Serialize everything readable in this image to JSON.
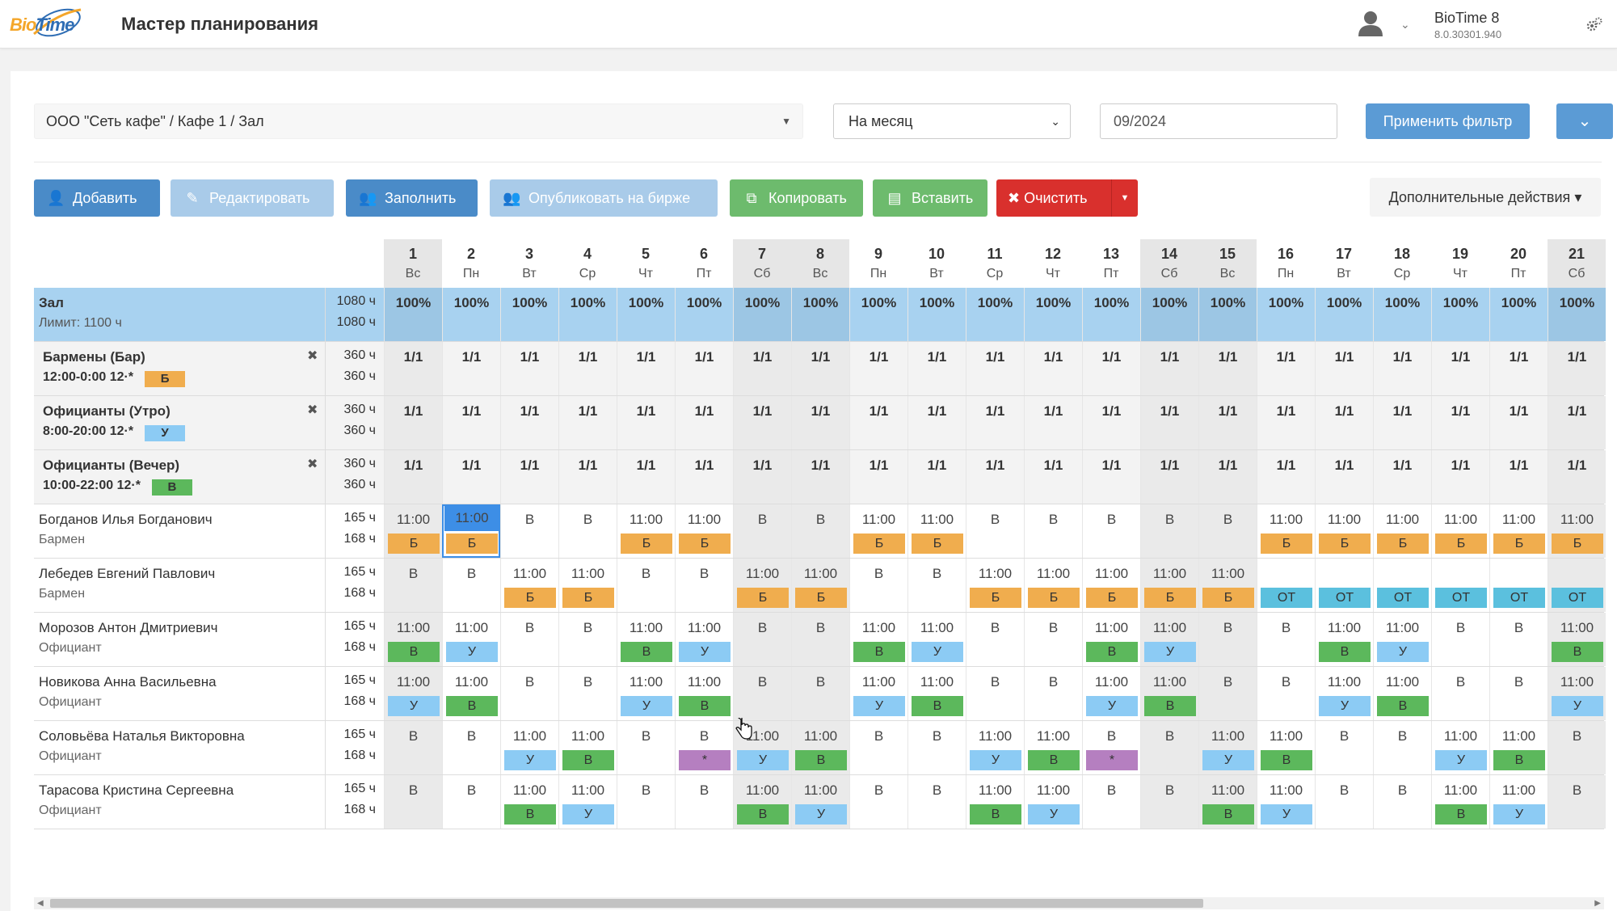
{
  "app": {
    "logo_text_bio": "Bio",
    "logo_text_time": "Time",
    "title": "Мастер планирования",
    "product_name": "BioTime 8",
    "product_version": "8.0.30301.940"
  },
  "filter": {
    "org_path": "ООО \"Сеть кафе\" / Кафе 1 / Зал",
    "period": "На месяц",
    "date": "09/2024",
    "apply_label": "Применить фильтр"
  },
  "toolbar": {
    "add": "Добавить",
    "edit": "Редактировать",
    "fill": "Заполнить",
    "publish": "Опубликовать на бирже",
    "copy": "Копировать",
    "paste": "Вставить",
    "clear": "Очистить",
    "more": "Дополнительные действия"
  },
  "colors": {
    "Б": "#f0ad4e",
    "У": "#8ccbf4",
    "В": "#5cb85c",
    "ОТ": "#5bc0de",
    "*": "#b57fc0"
  },
  "days": [
    {
      "n": "1",
      "w": "Вс",
      "we": true
    },
    {
      "n": "2",
      "w": "Пн",
      "we": false
    },
    {
      "n": "3",
      "w": "Вт",
      "we": false
    },
    {
      "n": "4",
      "w": "Ср",
      "we": false
    },
    {
      "n": "5",
      "w": "Чт",
      "we": false
    },
    {
      "n": "6",
      "w": "Пт",
      "we": false
    },
    {
      "n": "7",
      "w": "Сб",
      "we": true
    },
    {
      "n": "8",
      "w": "Вс",
      "we": true
    },
    {
      "n": "9",
      "w": "Пн",
      "we": false
    },
    {
      "n": "10",
      "w": "Вт",
      "we": false
    },
    {
      "n": "11",
      "w": "Ср",
      "we": false
    },
    {
      "n": "12",
      "w": "Чт",
      "we": false
    },
    {
      "n": "13",
      "w": "Пт",
      "we": false
    },
    {
      "n": "14",
      "w": "Сб",
      "we": true
    },
    {
      "n": "15",
      "w": "Вс",
      "we": true
    },
    {
      "n": "16",
      "w": "Пн",
      "we": false
    },
    {
      "n": "17",
      "w": "Вт",
      "we": false
    },
    {
      "n": "18",
      "w": "Ср",
      "we": false
    },
    {
      "n": "19",
      "w": "Чт",
      "we": false
    },
    {
      "n": "20",
      "w": "Пт",
      "we": false
    },
    {
      "n": "21",
      "w": "Сб",
      "we": true
    }
  ],
  "rows": [
    {
      "type": "summary",
      "name": "Зал",
      "sub": "Лимит: 1100 ч",
      "h1": "1080 ч",
      "h2": "1080 ч",
      "cells": [
        "100%",
        "100%",
        "100%",
        "100%",
        "100%",
        "100%",
        "100%",
        "100%",
        "100%",
        "100%",
        "100%",
        "100%",
        "100%",
        "100%",
        "100%",
        "100%",
        "100%",
        "100%",
        "100%",
        "100%",
        "100%"
      ]
    },
    {
      "type": "shift",
      "name": "Бармены (Бар)",
      "sub": "12:00-0:00   12·*",
      "badge": "Б",
      "h1": "360 ч",
      "h2": "360 ч",
      "cells": [
        "1/1",
        "1/1",
        "1/1",
        "1/1",
        "1/1",
        "1/1",
        "1/1",
        "1/1",
        "1/1",
        "1/1",
        "1/1",
        "1/1",
        "1/1",
        "1/1",
        "1/1",
        "1/1",
        "1/1",
        "1/1",
        "1/1",
        "1/1",
        "1/1"
      ]
    },
    {
      "type": "shift",
      "name": "Официанты (Утро)",
      "sub": "8:00-20:00   12·*",
      "badge": "У",
      "h1": "360 ч",
      "h2": "360 ч",
      "cells": [
        "1/1",
        "1/1",
        "1/1",
        "1/1",
        "1/1",
        "1/1",
        "1/1",
        "1/1",
        "1/1",
        "1/1",
        "1/1",
        "1/1",
        "1/1",
        "1/1",
        "1/1",
        "1/1",
        "1/1",
        "1/1",
        "1/1",
        "1/1",
        "1/1"
      ]
    },
    {
      "type": "shift",
      "name": "Официанты (Вечер)",
      "sub": "10:00-22:00   12·*",
      "badge": "В",
      "h1": "360 ч",
      "h2": "360 ч",
      "cells": [
        "1/1",
        "1/1",
        "1/1",
        "1/1",
        "1/1",
        "1/1",
        "1/1",
        "1/1",
        "1/1",
        "1/1",
        "1/1",
        "1/1",
        "1/1",
        "1/1",
        "1/1",
        "1/1",
        "1/1",
        "1/1",
        "1/1",
        "1/1",
        "1/1"
      ]
    },
    {
      "type": "emp",
      "name": "Богданов Илья Богданович",
      "sub": "Бармен",
      "h1": "165 ч",
      "h2": "168 ч",
      "cells": [
        {
          "v": "11:00",
          "t": "Б"
        },
        {
          "v": "11:00",
          "t": "Б",
          "sel": true
        },
        {
          "v": "В"
        },
        {
          "v": "В"
        },
        {
          "v": "11:00",
          "t": "Б"
        },
        {
          "v": "11:00",
          "t": "Б"
        },
        {
          "v": "В"
        },
        {
          "v": "В"
        },
        {
          "v": "11:00",
          "t": "Б"
        },
        {
          "v": "11:00",
          "t": "Б"
        },
        {
          "v": "В"
        },
        {
          "v": "В"
        },
        {
          "v": "В"
        },
        {
          "v": "В"
        },
        {
          "v": "В"
        },
        {
          "v": "11:00",
          "t": "Б"
        },
        {
          "v": "11:00",
          "t": "Б"
        },
        {
          "v": "11:00",
          "t": "Б"
        },
        {
          "v": "11:00",
          "t": "Б"
        },
        {
          "v": "11:00",
          "t": "Б"
        },
        {
          "v": "11:00",
          "t": "Б"
        }
      ]
    },
    {
      "type": "emp",
      "name": "Лебедев Евгений Павлович",
      "sub": "Бармен",
      "h1": "165 ч",
      "h2": "168 ч",
      "cells": [
        {
          "v": "В"
        },
        {
          "v": "В"
        },
        {
          "v": "11:00",
          "t": "Б"
        },
        {
          "v": "11:00",
          "t": "Б"
        },
        {
          "v": "В"
        },
        {
          "v": "В"
        },
        {
          "v": "11:00",
          "t": "Б"
        },
        {
          "v": "11:00",
          "t": "Б"
        },
        {
          "v": "В"
        },
        {
          "v": "В"
        },
        {
          "v": "11:00",
          "t": "Б"
        },
        {
          "v": "11:00",
          "t": "Б"
        },
        {
          "v": "11:00",
          "t": "Б"
        },
        {
          "v": "11:00",
          "t": "Б"
        },
        {
          "v": "11:00",
          "t": "Б"
        },
        {
          "v": "",
          "t": "ОТ"
        },
        {
          "v": "",
          "t": "ОТ"
        },
        {
          "v": "",
          "t": "ОТ"
        },
        {
          "v": "",
          "t": "ОТ"
        },
        {
          "v": "",
          "t": "ОТ"
        },
        {
          "v": "",
          "t": "ОТ"
        }
      ]
    },
    {
      "type": "emp",
      "name": "Морозов Антон Дмитриевич",
      "sub": "Официант",
      "h1": "165 ч",
      "h2": "168 ч",
      "cells": [
        {
          "v": "11:00",
          "t": "В"
        },
        {
          "v": "11:00",
          "t": "У"
        },
        {
          "v": "В"
        },
        {
          "v": "В"
        },
        {
          "v": "11:00",
          "t": "В"
        },
        {
          "v": "11:00",
          "t": "У"
        },
        {
          "v": "В"
        },
        {
          "v": "В"
        },
        {
          "v": "11:00",
          "t": "В"
        },
        {
          "v": "11:00",
          "t": "У"
        },
        {
          "v": "В"
        },
        {
          "v": "В"
        },
        {
          "v": "11:00",
          "t": "В"
        },
        {
          "v": "11:00",
          "t": "У"
        },
        {
          "v": "В"
        },
        {
          "v": "В"
        },
        {
          "v": "11:00",
          "t": "В"
        },
        {
          "v": "11:00",
          "t": "У"
        },
        {
          "v": "В"
        },
        {
          "v": "В"
        },
        {
          "v": "11:00",
          "t": "В"
        }
      ]
    },
    {
      "type": "emp",
      "name": "Новикова Анна Васильевна",
      "sub": "Официант",
      "h1": "165 ч",
      "h2": "168 ч",
      "cells": [
        {
          "v": "11:00",
          "t": "У"
        },
        {
          "v": "11:00",
          "t": "В"
        },
        {
          "v": "В"
        },
        {
          "v": "В"
        },
        {
          "v": "11:00",
          "t": "У"
        },
        {
          "v": "11:00",
          "t": "В"
        },
        {
          "v": "В"
        },
        {
          "v": "В"
        },
        {
          "v": "11:00",
          "t": "У"
        },
        {
          "v": "11:00",
          "t": "В"
        },
        {
          "v": "В"
        },
        {
          "v": "В"
        },
        {
          "v": "11:00",
          "t": "У"
        },
        {
          "v": "11:00",
          "t": "В"
        },
        {
          "v": "В"
        },
        {
          "v": "В"
        },
        {
          "v": "11:00",
          "t": "У"
        },
        {
          "v": "11:00",
          "t": "В"
        },
        {
          "v": "В"
        },
        {
          "v": "В"
        },
        {
          "v": "11:00",
          "t": "У"
        }
      ]
    },
    {
      "type": "emp",
      "name": "Соловьёва Наталья Викторовна",
      "sub": "Официант",
      "h1": "165 ч",
      "h2": "168 ч",
      "cells": [
        {
          "v": "В"
        },
        {
          "v": "В"
        },
        {
          "v": "11:00",
          "t": "У"
        },
        {
          "v": "11:00",
          "t": "В"
        },
        {
          "v": "В"
        },
        {
          "v": "В",
          "t": "*"
        },
        {
          "v": "11:00",
          "t": "У"
        },
        {
          "v": "11:00",
          "t": "В"
        },
        {
          "v": "В"
        },
        {
          "v": "В"
        },
        {
          "v": "11:00",
          "t": "У"
        },
        {
          "v": "11:00",
          "t": "В"
        },
        {
          "v": "В",
          "t": "*"
        },
        {
          "v": "В"
        },
        {
          "v": "11:00",
          "t": "У"
        },
        {
          "v": "11:00",
          "t": "В"
        },
        {
          "v": "В"
        },
        {
          "v": "В"
        },
        {
          "v": "11:00",
          "t": "У"
        },
        {
          "v": "11:00",
          "t": "В"
        },
        {
          "v": "В"
        }
      ]
    },
    {
      "type": "emp",
      "name": "Тарасова Кристина Сергеевна",
      "sub": "Официант",
      "h1": "165 ч",
      "h2": "168 ч",
      "cells": [
        {
          "v": "В"
        },
        {
          "v": "В"
        },
        {
          "v": "11:00",
          "t": "В"
        },
        {
          "v": "11:00",
          "t": "У"
        },
        {
          "v": "В"
        },
        {
          "v": "В"
        },
        {
          "v": "11:00",
          "t": "В"
        },
        {
          "v": "11:00",
          "t": "У"
        },
        {
          "v": "В"
        },
        {
          "v": "В"
        },
        {
          "v": "11:00",
          "t": "В"
        },
        {
          "v": "11:00",
          "t": "У"
        },
        {
          "v": "В"
        },
        {
          "v": "В"
        },
        {
          "v": "11:00",
          "t": "В"
        },
        {
          "v": "11:00",
          "t": "У"
        },
        {
          "v": "В"
        },
        {
          "v": "В"
        },
        {
          "v": "11:00",
          "t": "В"
        },
        {
          "v": "11:00",
          "t": "У"
        },
        {
          "v": "В"
        }
      ]
    }
  ]
}
